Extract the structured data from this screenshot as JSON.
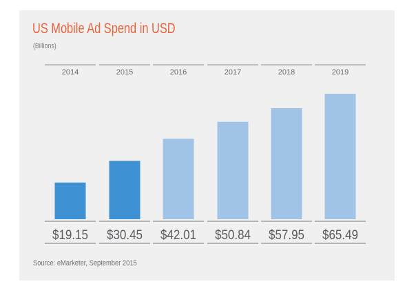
{
  "chart_data": {
    "type": "bar",
    "title": "US Mobile Ad Spend in USD",
    "subtitle": "(Billions)",
    "categories": [
      "2014",
      "2015",
      "2016",
      "2017",
      "2018",
      "2019"
    ],
    "values": [
      19.15,
      30.45,
      42.01,
      50.84,
      57.95,
      65.49
    ],
    "value_labels": [
      "$19.15",
      "$30.45",
      "$42.01",
      "$50.84",
      "$57.95",
      "$65.49"
    ],
    "actual_count": 2,
    "colors": {
      "actual": "#3e91d2",
      "forecast": "#a0c3e6",
      "title": "#e8623b"
    },
    "xlabel": "",
    "ylabel": "",
    "grid": false,
    "legend": "none"
  },
  "source": "Source: eMarketer, September 2015"
}
